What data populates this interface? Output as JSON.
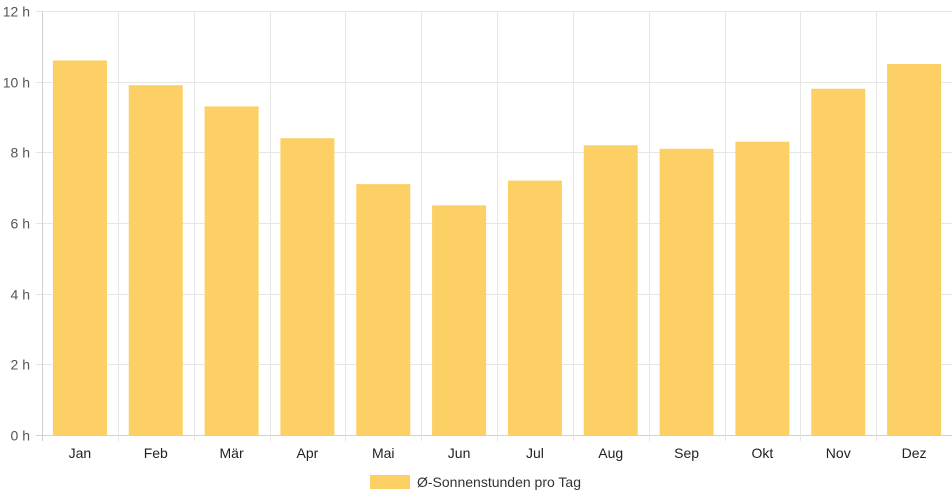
{
  "chart_data": {
    "type": "bar",
    "categories": [
      "Jan",
      "Feb",
      "Mär",
      "Apr",
      "Mai",
      "Jun",
      "Jul",
      "Aug",
      "Sep",
      "Okt",
      "Nov",
      "Dez"
    ],
    "series": [
      {
        "name": "Ø-Sonnenstunden pro Tag",
        "values": [
          10.6,
          9.9,
          9.3,
          8.4,
          7.1,
          6.5,
          7.2,
          8.2,
          8.1,
          8.3,
          9.8,
          10.5
        ],
        "color": "#fdd065"
      }
    ],
    "y_ticks": [
      "0 h",
      "2 h",
      "4 h",
      "6 h",
      "8 h",
      "10 h",
      "12 h"
    ],
    "ylim": [
      0,
      12
    ],
    "y_unit": "h",
    "grid": true,
    "legend_position": "bottom-center"
  }
}
